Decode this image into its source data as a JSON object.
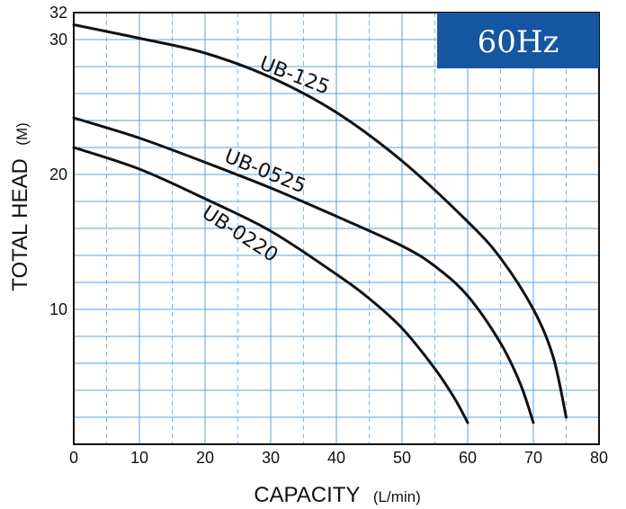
{
  "chart_data": {
    "type": "line",
    "badge": "60Hz",
    "xlabel_main": "CAPACITY",
    "xlabel_unit": "(L/min)",
    "ylabel_main": "TOTAL HEAD",
    "ylabel_unit": "(M)",
    "xlim": [
      0,
      80
    ],
    "ylim": [
      0,
      32
    ],
    "x_ticks": [
      0,
      10,
      20,
      30,
      40,
      50,
      60,
      70,
      80
    ],
    "y_ticks": [
      10,
      20,
      30,
      32
    ],
    "x_tick_labels": [
      "0",
      "10",
      "20",
      "30",
      "40",
      "50",
      "60",
      "70",
      "80"
    ],
    "y_tick_labels": [
      "10",
      "20",
      "30",
      "32"
    ],
    "grid": true,
    "colors": {
      "grid_major": "#5aa0d8",
      "grid_minor": "#7db8e6",
      "curve": "#111111",
      "badge_bg": "#1556a0",
      "plot_bg": "#ffffff"
    },
    "series": [
      {
        "name": "UB-125",
        "points": [
          [
            0,
            31.1
          ],
          [
            10,
            30.1
          ],
          [
            20,
            29.0
          ],
          [
            30,
            27.2
          ],
          [
            40,
            24.6
          ],
          [
            50,
            21.0
          ],
          [
            60,
            16.5
          ],
          [
            65,
            13.8
          ],
          [
            70,
            10.0
          ],
          [
            73,
            6.5
          ],
          [
            75,
            2.0
          ]
        ]
      },
      {
        "name": "UB-0525",
        "points": [
          [
            0,
            24.2
          ],
          [
            10,
            22.7
          ],
          [
            20,
            20.9
          ],
          [
            30,
            19.0
          ],
          [
            40,
            16.9
          ],
          [
            50,
            14.7
          ],
          [
            55,
            13.2
          ],
          [
            60,
            11.0
          ],
          [
            65,
            7.5
          ],
          [
            68,
            4.5
          ],
          [
            70,
            1.6
          ]
        ]
      },
      {
        "name": "UB-0220",
        "points": [
          [
            0,
            22.0
          ],
          [
            10,
            20.4
          ],
          [
            20,
            18.2
          ],
          [
            30,
            15.8
          ],
          [
            40,
            12.6
          ],
          [
            45,
            10.8
          ],
          [
            50,
            8.6
          ],
          [
            55,
            5.6
          ],
          [
            58,
            3.4
          ],
          [
            60,
            1.6
          ]
        ]
      }
    ],
    "series_label_positions": [
      {
        "name": "UB-125",
        "x": 33.3,
        "y": 26.9,
        "rotate": 21
      },
      {
        "name": "UB-0525",
        "x": 28.8,
        "y": 19.8,
        "rotate": 22
      },
      {
        "name": "UB-0220",
        "x": 24.8,
        "y": 15.2,
        "rotate": 33
      }
    ]
  }
}
